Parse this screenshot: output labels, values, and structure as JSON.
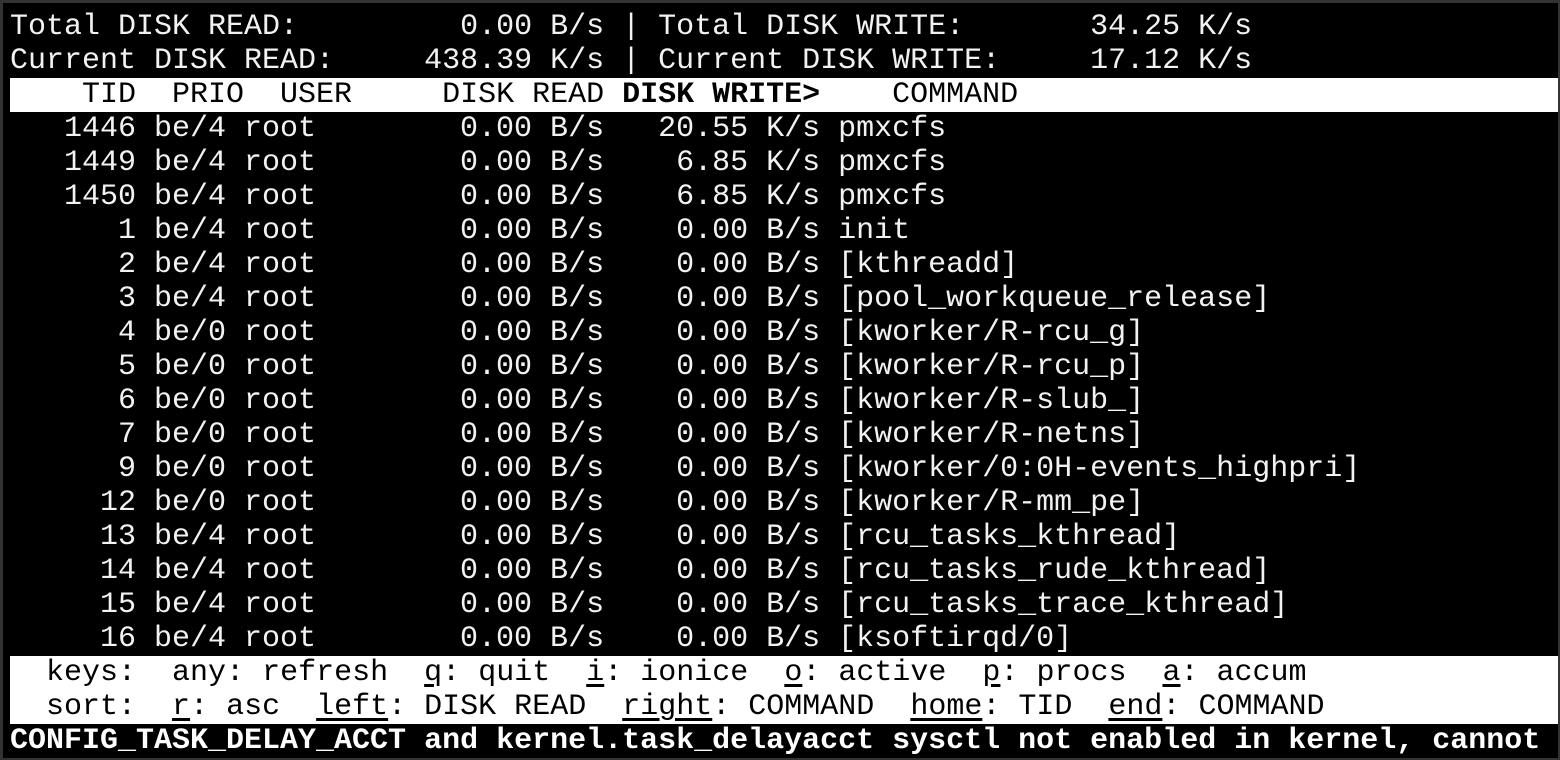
{
  "summary": {
    "total_read_label": "Total DISK READ:",
    "total_read": "0.00 B/s",
    "total_write_label": "Total DISK WRITE:",
    "total_write": "34.25 K/s",
    "current_read_label": "Current DISK READ:",
    "current_read": "438.39 K/s",
    "current_write_label": "Current DISK WRITE:",
    "current_write": "17.12 K/s",
    "separator": "|"
  },
  "header": {
    "tid": "TID",
    "prio": "PRIO",
    "user": "USER",
    "disk_read": "DISK READ",
    "disk_write": "DISK WRITE>",
    "command": "COMMAND"
  },
  "rows": [
    {
      "tid": "1446",
      "prio": "be/4",
      "user": "root",
      "read": "0.00 B/s",
      "write": "20.55 K/s",
      "command": "pmxcfs"
    },
    {
      "tid": "1449",
      "prio": "be/4",
      "user": "root",
      "read": "0.00 B/s",
      "write": "6.85 K/s",
      "command": "pmxcfs"
    },
    {
      "tid": "1450",
      "prio": "be/4",
      "user": "root",
      "read": "0.00 B/s",
      "write": "6.85 K/s",
      "command": "pmxcfs"
    },
    {
      "tid": "1",
      "prio": "be/4",
      "user": "root",
      "read": "0.00 B/s",
      "write": "0.00 B/s",
      "command": "init"
    },
    {
      "tid": "2",
      "prio": "be/4",
      "user": "root",
      "read": "0.00 B/s",
      "write": "0.00 B/s",
      "command": "[kthreadd]"
    },
    {
      "tid": "3",
      "prio": "be/4",
      "user": "root",
      "read": "0.00 B/s",
      "write": "0.00 B/s",
      "command": "[pool_workqueue_release]"
    },
    {
      "tid": "4",
      "prio": "be/0",
      "user": "root",
      "read": "0.00 B/s",
      "write": "0.00 B/s",
      "command": "[kworker/R-rcu_g]"
    },
    {
      "tid": "5",
      "prio": "be/0",
      "user": "root",
      "read": "0.00 B/s",
      "write": "0.00 B/s",
      "command": "[kworker/R-rcu_p]"
    },
    {
      "tid": "6",
      "prio": "be/0",
      "user": "root",
      "read": "0.00 B/s",
      "write": "0.00 B/s",
      "command": "[kworker/R-slub_]"
    },
    {
      "tid": "7",
      "prio": "be/0",
      "user": "root",
      "read": "0.00 B/s",
      "write": "0.00 B/s",
      "command": "[kworker/R-netns]"
    },
    {
      "tid": "9",
      "prio": "be/0",
      "user": "root",
      "read": "0.00 B/s",
      "write": "0.00 B/s",
      "command": "[kworker/0:0H-events_highpri]"
    },
    {
      "tid": "12",
      "prio": "be/0",
      "user": "root",
      "read": "0.00 B/s",
      "write": "0.00 B/s",
      "command": "[kworker/R-mm_pe]"
    },
    {
      "tid": "13",
      "prio": "be/4",
      "user": "root",
      "read": "0.00 B/s",
      "write": "0.00 B/s",
      "command": "[rcu_tasks_kthread]"
    },
    {
      "tid": "14",
      "prio": "be/4",
      "user": "root",
      "read": "0.00 B/s",
      "write": "0.00 B/s",
      "command": "[rcu_tasks_rude_kthread]"
    },
    {
      "tid": "15",
      "prio": "be/4",
      "user": "root",
      "read": "0.00 B/s",
      "write": "0.00 B/s",
      "command": "[rcu_tasks_trace_kthread]"
    },
    {
      "tid": "16",
      "prio": "be/4",
      "user": "root",
      "read": "0.00 B/s",
      "write": "0.00 B/s",
      "command": "[ksoftirqd/0]"
    }
  ],
  "keys": {
    "label": "keys:",
    "items": [
      {
        "key": "any",
        "desc": "refresh",
        "underline": false
      },
      {
        "key": "q",
        "desc": "quit",
        "underline": true
      },
      {
        "key": "i",
        "desc": "ionice",
        "underline": true
      },
      {
        "key": "o",
        "desc": "active",
        "underline": true
      },
      {
        "key": "p",
        "desc": "procs",
        "underline": true
      },
      {
        "key": "a",
        "desc": "accum",
        "underline": true
      }
    ]
  },
  "sort": {
    "label": "sort:",
    "items": [
      {
        "key": "r",
        "desc": "asc",
        "underline": true
      },
      {
        "key": "left",
        "desc": "DISK READ",
        "underline": true
      },
      {
        "key": "right",
        "desc": "COMMAND",
        "underline": true
      },
      {
        "key": "home",
        "desc": "TID",
        "underline": true
      },
      {
        "key": "end",
        "desc": "COMMAND",
        "underline": true
      }
    ]
  },
  "status_message": "CONFIG_TASK_DELAY_ACCT and kernel.task_delayacct sysctl not enabled in kernel, cannot",
  "colors": {
    "background": "#000000",
    "text": "#f2f2f2",
    "inverse_bar": "#ffffff"
  }
}
